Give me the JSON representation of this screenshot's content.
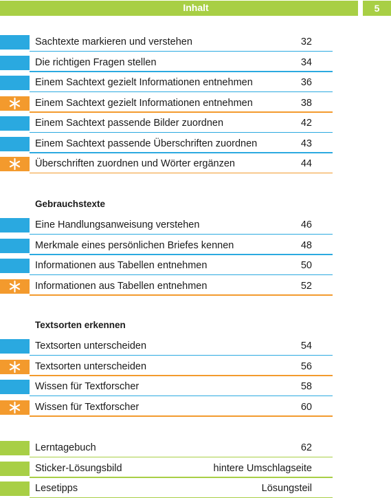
{
  "colors": {
    "blue": "#2aa9e0",
    "orange": "#f39a2d",
    "green": "#a8cf45"
  },
  "header": {
    "title": "Inhalt",
    "page_number": "5"
  },
  "sections": [
    {
      "heading": "",
      "rows": [
        {
          "label": "Sachtexte markieren und verstehen",
          "page": "32",
          "color": "blue",
          "star": false
        },
        {
          "label": "Die richtigen Fragen stellen",
          "page": "34",
          "color": "blue",
          "star": false
        },
        {
          "label": "Einem Sachtext gezielt Informationen entnehmen",
          "page": "36",
          "color": "blue",
          "star": false
        },
        {
          "label": "Einem Sachtext gezielt Informationen entnehmen",
          "page": "38",
          "color": "orange",
          "star": true
        },
        {
          "label": "Einem Sachtext passende Bilder zuordnen",
          "page": "42",
          "color": "blue",
          "star": false
        },
        {
          "label": "Einem Sachtext passende Überschriften zuordnen",
          "page": "43",
          "color": "blue",
          "star": false
        },
        {
          "label": "Überschriften zuordnen und Wörter ergänzen",
          "page": "44",
          "color": "orange",
          "star": true
        }
      ]
    },
    {
      "heading": "Gebrauchstexte",
      "rows": [
        {
          "label": "Eine Handlungsanweisung verstehen",
          "page": "46",
          "color": "blue",
          "star": false
        },
        {
          "label": "Merkmale eines persönlichen Briefes kennen",
          "page": "48",
          "color": "blue",
          "star": false
        },
        {
          "label": "Informationen aus Tabellen entnehmen",
          "page": "50",
          "color": "blue",
          "star": false
        },
        {
          "label": "Informationen aus Tabellen entnehmen",
          "page": "52",
          "color": "orange",
          "star": true
        }
      ]
    },
    {
      "heading": "Textsorten erkennen",
      "rows": [
        {
          "label": "Textsorten unterscheiden",
          "page": "54",
          "color": "blue",
          "star": false
        },
        {
          "label": "Textsorten unterscheiden",
          "page": "56",
          "color": "orange",
          "star": true
        },
        {
          "label": "Wissen für Textforscher",
          "page": "58",
          "color": "blue",
          "star": false
        },
        {
          "label": "Wissen für Textforscher",
          "page": "60",
          "color": "orange",
          "star": true
        }
      ]
    },
    {
      "heading": "",
      "rows": [
        {
          "label": "Lerntagebuch",
          "page": "62",
          "color": "green",
          "star": false
        },
        {
          "label": "Sticker-Lösungsbild",
          "page": "hintere Umschlagseite",
          "color": "green",
          "star": false
        },
        {
          "label": "Lesetipps",
          "page": "Lösungsteil",
          "color": "green",
          "star": false
        }
      ]
    }
  ]
}
